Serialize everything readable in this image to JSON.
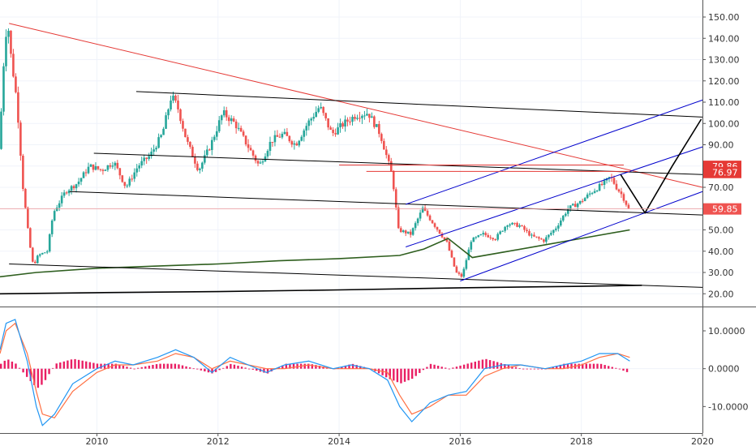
{
  "chart_data": [
    {
      "type": "candlestick",
      "panel": "price",
      "x_range": [
        2008.4,
        2020.0
      ],
      "ylim": [
        14,
        158
      ],
      "yticks": [
        "150.00",
        "140.00",
        "130.00",
        "120.00",
        "110.00",
        "100.00",
        "90.00",
        "80.00",
        "70.00",
        "60.00",
        "50.00",
        "40.00",
        "30.00",
        "20.00"
      ],
      "ytick_values": [
        150,
        140,
        130,
        120,
        110,
        100,
        90,
        80,
        70,
        60,
        50,
        40,
        30,
        20
      ],
      "xticks": [
        "2010",
        "2012",
        "2014",
        "2016",
        "2018",
        "2020"
      ],
      "xtick_values": [
        2010,
        2012,
        2014,
        2016,
        2018,
        2020
      ],
      "price_path": [
        [
          2008.4,
          88
        ],
        [
          2008.45,
          110
        ],
        [
          2008.5,
          140
        ],
        [
          2008.55,
          147
        ],
        [
          2008.6,
          132
        ],
        [
          2008.7,
          110
        ],
        [
          2008.8,
          70
        ],
        [
          2008.9,
          45
        ],
        [
          2008.97,
          33
        ],
        [
          2009.05,
          38
        ],
        [
          2009.2,
          40
        ],
        [
          2009.3,
          58
        ],
        [
          2009.5,
          68
        ],
        [
          2009.7,
          72
        ],
        [
          2009.9,
          80
        ],
        [
          2010.1,
          78
        ],
        [
          2010.3,
          82
        ],
        [
          2010.5,
          70
        ],
        [
          2010.7,
          80
        ],
        [
          2010.9,
          85
        ],
        [
          2011.1,
          95
        ],
        [
          2011.25,
          113
        ],
        [
          2011.35,
          108
        ],
        [
          2011.5,
          92
        ],
        [
          2011.7,
          78
        ],
        [
          2011.9,
          90
        ],
        [
          2012.1,
          105
        ],
        [
          2012.3,
          100
        ],
        [
          2012.5,
          90
        ],
        [
          2012.7,
          80
        ],
        [
          2012.9,
          92
        ],
        [
          2013.1,
          95
        ],
        [
          2013.3,
          90
        ],
        [
          2013.5,
          100
        ],
        [
          2013.7,
          108
        ],
        [
          2013.9,
          95
        ],
        [
          2014.1,
          100
        ],
        [
          2014.3,
          104
        ],
        [
          2014.5,
          105
        ],
        [
          2014.7,
          95
        ],
        [
          2014.9,
          75
        ],
        [
          2015.0,
          50
        ],
        [
          2015.2,
          48
        ],
        [
          2015.4,
          60
        ],
        [
          2015.6,
          52
        ],
        [
          2015.8,
          44
        ],
        [
          2015.95,
          30
        ],
        [
          2016.05,
          28
        ],
        [
          2016.2,
          45
        ],
        [
          2016.4,
          48
        ],
        [
          2016.6,
          46
        ],
        [
          2016.8,
          53
        ],
        [
          2017.0,
          52
        ],
        [
          2017.2,
          47
        ],
        [
          2017.4,
          45
        ],
        [
          2017.6,
          51
        ],
        [
          2017.8,
          60
        ],
        [
          2018.0,
          63
        ],
        [
          2018.2,
          68
        ],
        [
          2018.4,
          72
        ],
        [
          2018.5,
          75
        ],
        [
          2018.6,
          70
        ],
        [
          2018.7,
          66
        ],
        [
          2018.8,
          59.85
        ]
      ],
      "trendlines": [
        {
          "color": "#e53935",
          "points": [
            [
              2008.55,
              147
            ],
            [
              2020.0,
              70
            ]
          ]
        },
        {
          "color": "#000000",
          "points": [
            [
              2010.65,
              115
            ],
            [
              2020.0,
              103
            ]
          ]
        },
        {
          "color": "#000000",
          "points": [
            [
              2009.95,
              86
            ],
            [
              2020.0,
              76
            ]
          ]
        },
        {
          "color": "#000000",
          "points": [
            [
              2009.55,
              68
            ],
            [
              2020.0,
              57
            ]
          ]
        },
        {
          "color": "#000000",
          "points": [
            [
              2008.55,
              34
            ],
            [
              2020.0,
              23
            ]
          ]
        },
        {
          "color": "#0000cc",
          "points": [
            [
              2015.1,
              62
            ],
            [
              2020.0,
              111
            ]
          ]
        },
        {
          "color": "#0000cc",
          "points": [
            [
              2015.1,
              42
            ],
            [
              2020.0,
              89
            ]
          ]
        },
        {
          "color": "#0000cc",
          "points": [
            [
              2016.0,
              26
            ],
            [
              2020.0,
              68
            ]
          ]
        },
        {
          "color": "#e53935",
          "points": [
            [
              2014.0,
              80.5
            ],
            [
              2018.7,
              80.5
            ]
          ]
        },
        {
          "color": "#e53935",
          "points": [
            [
              2014.45,
              77.5
            ],
            [
              2018.8,
              77.5
            ]
          ]
        }
      ],
      "projection_path": [
        [
          2018.65,
          76
        ],
        [
          2019.05,
          58
        ],
        [
          2019.5,
          80
        ],
        [
          2019.98,
          102
        ]
      ],
      "moving_average_green": [
        [
          2008.4,
          28
        ],
        [
          2009.0,
          30
        ],
        [
          2010.0,
          32
        ],
        [
          2011.0,
          33
        ],
        [
          2012.0,
          34
        ],
        [
          2013.0,
          35.5
        ],
        [
          2014.0,
          36.5
        ],
        [
          2015.0,
          38
        ],
        [
          2015.4,
          41
        ],
        [
          2015.8,
          46
        ],
        [
          2016.2,
          37
        ],
        [
          2016.8,
          40
        ],
        [
          2017.4,
          43
        ],
        [
          2018.0,
          46
        ],
        [
          2018.8,
          50
        ]
      ],
      "moving_average_black": [
        [
          2008.4,
          20
        ],
        [
          2010.0,
          20.5
        ],
        [
          2012.0,
          21
        ],
        [
          2014.0,
          21.8
        ],
        [
          2016.0,
          22.8
        ],
        [
          2018.0,
          23.5
        ],
        [
          2019.0,
          24
        ]
      ],
      "price_labels": [
        {
          "value": "79.86",
          "price": 79.86,
          "color": "#e53935"
        },
        {
          "value": "76.97",
          "price": 76.97,
          "color": "#e53935"
        },
        {
          "value": "59.85",
          "price": 59.85,
          "color": "#ef5350"
        }
      ],
      "colors": {
        "up": "#26a69a",
        "down": "#ef5350",
        "red_line": "#e53935",
        "blue_line": "#0000cc",
        "ma_green": "#2e5e1e"
      }
    },
    {
      "type": "macd",
      "panel": "indicator",
      "x_range": [
        2008.4,
        2020.0
      ],
      "ylim": [
        -17,
        16
      ],
      "yticks": [
        "10.0000",
        "0.0000",
        "-10.0000"
      ],
      "ytick_values": [
        10,
        0,
        -10
      ],
      "macd_line": [
        [
          2008.4,
          5
        ],
        [
          2008.5,
          12
        ],
        [
          2008.65,
          13
        ],
        [
          2008.85,
          2
        ],
        [
          2009.0,
          -10
        ],
        [
          2009.1,
          -15
        ],
        [
          2009.3,
          -12
        ],
        [
          2009.6,
          -4
        ],
        [
          2010.0,
          0
        ],
        [
          2010.3,
          2
        ],
        [
          2010.6,
          1
        ],
        [
          2011.0,
          3
        ],
        [
          2011.3,
          5
        ],
        [
          2011.6,
          3
        ],
        [
          2011.9,
          -1
        ],
        [
          2012.2,
          3
        ],
        [
          2012.5,
          1
        ],
        [
          2012.8,
          -1
        ],
        [
          2013.1,
          1
        ],
        [
          2013.5,
          2
        ],
        [
          2013.9,
          0
        ],
        [
          2014.2,
          1
        ],
        [
          2014.5,
          0
        ],
        [
          2014.8,
          -3
        ],
        [
          2015.0,
          -10
        ],
        [
          2015.2,
          -14
        ],
        [
          2015.5,
          -9
        ],
        [
          2015.8,
          -7
        ],
        [
          2016.1,
          -6
        ],
        [
          2016.4,
          0
        ],
        [
          2016.7,
          1
        ],
        [
          2017.0,
          1
        ],
        [
          2017.4,
          0
        ],
        [
          2017.7,
          1
        ],
        [
          2018.0,
          2
        ],
        [
          2018.3,
          4
        ],
        [
          2018.6,
          4
        ],
        [
          2018.8,
          2
        ]
      ],
      "signal_line": [
        [
          2008.4,
          4
        ],
        [
          2008.5,
          10
        ],
        [
          2008.65,
          12
        ],
        [
          2008.85,
          4
        ],
        [
          2009.0,
          -6
        ],
        [
          2009.1,
          -12
        ],
        [
          2009.3,
          -13
        ],
        [
          2009.6,
          -6
        ],
        [
          2010.0,
          -1
        ],
        [
          2010.3,
          1
        ],
        [
          2010.6,
          1
        ],
        [
          2011.0,
          2
        ],
        [
          2011.3,
          4
        ],
        [
          2011.6,
          3
        ],
        [
          2011.9,
          0
        ],
        [
          2012.2,
          2
        ],
        [
          2012.5,
          1
        ],
        [
          2012.8,
          0
        ],
        [
          2013.1,
          0
        ],
        [
          2013.5,
          1
        ],
        [
          2013.9,
          0
        ],
        [
          2014.2,
          0
        ],
        [
          2014.5,
          0
        ],
        [
          2014.8,
          -1
        ],
        [
          2015.0,
          -7
        ],
        [
          2015.2,
          -12
        ],
        [
          2015.5,
          -10
        ],
        [
          2015.8,
          -7
        ],
        [
          2016.1,
          -7
        ],
        [
          2016.4,
          -2
        ],
        [
          2016.7,
          0
        ],
        [
          2017.0,
          1
        ],
        [
          2017.4,
          0
        ],
        [
          2017.7,
          0
        ],
        [
          2018.0,
          1
        ],
        [
          2018.3,
          3
        ],
        [
          2018.6,
          4
        ],
        [
          2018.8,
          3
        ]
      ],
      "colors": {
        "macd": "#2196f3",
        "signal": "#ff7043",
        "histogram": "#e91e63"
      }
    }
  ]
}
